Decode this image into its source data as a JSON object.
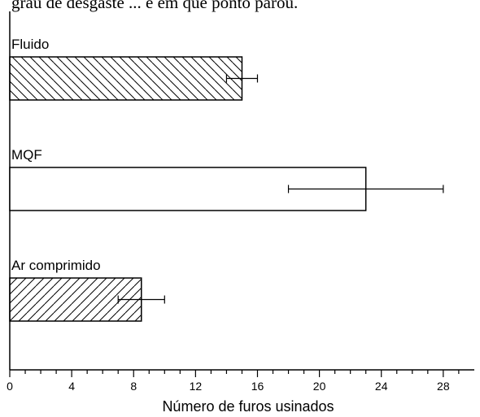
{
  "chart_data": {
    "type": "bar",
    "orientation": "horizontal",
    "top_text": "grau de desgaste ... e em que ponto parou.",
    "xlabel": "Número de furos usinados",
    "xlim": [
      0,
      30
    ],
    "x_major_ticks": [
      0,
      4,
      8,
      12,
      16,
      20,
      24,
      28
    ],
    "x_minor_step": 1,
    "x_tick_labels": [
      "0",
      "4",
      "8",
      "12",
      "16",
      "20",
      "24",
      "28"
    ],
    "categories": [
      "Fluido",
      "MQF",
      "Ar comprimido"
    ],
    "values": [
      15,
      23,
      8.5
    ],
    "error_bars": [
      {
        "low": 14,
        "high": 16
      },
      {
        "low": 18,
        "high": 28
      },
      {
        "low": 7,
        "high": 10
      }
    ],
    "fills": [
      "hatch-backslash",
      "none",
      "hatch-slash"
    ],
    "grid": false,
    "legend": "none"
  }
}
